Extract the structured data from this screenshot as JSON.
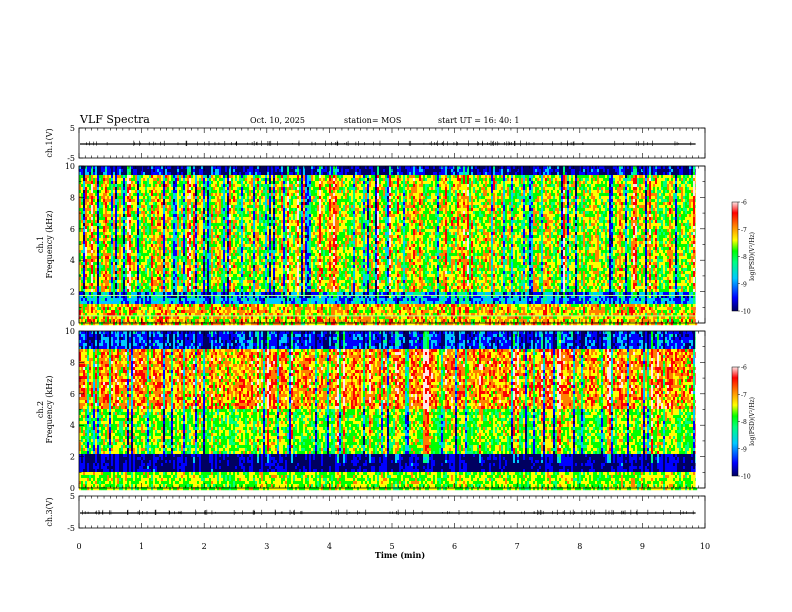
{
  "header": {
    "title": "VLF Spectra",
    "date": "Oct. 10, 2025",
    "station": "station= MOS",
    "start": "start  UT =   16: 40: 1"
  },
  "colors": {
    "spectrum": [
      "#000060",
      "#0000ff",
      "#00c8ff",
      "#00ff80",
      "#00ff00",
      "#ffff00",
      "#ff8000",
      "#ff0000",
      "#ffe6e6"
    ],
    "trace": "#000000"
  },
  "chart_data": [
    {
      "type": "line",
      "id": "ch1",
      "ylabel": "ch.1(V)",
      "yticks": [
        "5",
        "-5"
      ],
      "ylim": [
        -5,
        5
      ],
      "description_value": 0
    },
    {
      "type": "heatmap",
      "id": "ch1-spec",
      "ylabel_top": "ch.1",
      "ylabel": "Frequency (kHz)",
      "yticks": [
        "0",
        "2",
        "4",
        "6",
        "8",
        "10"
      ],
      "ylim": [
        0,
        10
      ],
      "cbar": {
        "label": "log(PSD)(V²/Hz)",
        "ticks": [
          "-6",
          "-7",
          "-8",
          "-9",
          "-10"
        ],
        "range": [
          -10,
          -6
        ]
      }
    },
    {
      "type": "heatmap",
      "id": "ch2-spec",
      "ylabel_top": "ch.2",
      "ylabel": "Frequency (kHz)",
      "yticks": [
        "0",
        "2",
        "4",
        "6",
        "8",
        "10"
      ],
      "ylim": [
        0,
        10
      ],
      "cbar": {
        "label": "log(PSD)(V²/Hz)",
        "ticks": [
          "-6",
          "-7",
          "-8",
          "-9",
          "-10"
        ],
        "range": [
          -10,
          -6
        ]
      }
    },
    {
      "type": "line",
      "id": "ch3",
      "ylabel": "ch.3(V)",
      "yticks": [
        "5",
        "-5"
      ],
      "ylim": [
        -5,
        5
      ]
    }
  ],
  "xaxis": {
    "label": "Time (min)",
    "ticks": [
      "0",
      "1",
      "2",
      "3",
      "4",
      "5",
      "6",
      "7",
      "8",
      "9",
      "10"
    ],
    "range": [
      0,
      10
    ],
    "data_end": 9.85
  }
}
